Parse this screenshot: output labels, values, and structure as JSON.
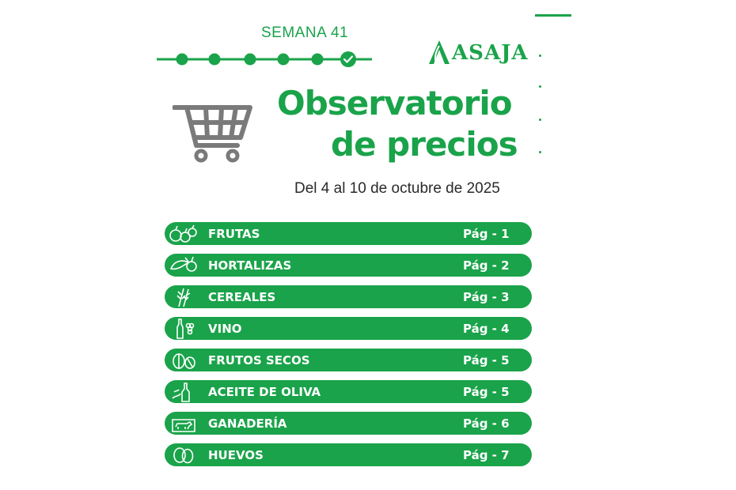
{
  "header": {
    "week_label": "SEMANA 41",
    "brand": "ASAJA",
    "title_line1": "Observatorio",
    "title_line2": "de precios",
    "date_range": "Del 4 al 10 de octubre de 2025"
  },
  "colors": {
    "accent": "#1aa34a",
    "cart": "#7a7a7a",
    "text": "#2a2a2a"
  },
  "timeline": {
    "steps": 6,
    "completed_icon": "check-icon"
  },
  "sections": [
    {
      "label": "FRUTAS",
      "page": "Pág - 1",
      "icon": "fruits-icon"
    },
    {
      "label": "HORTALIZAS",
      "page": "Pág - 2",
      "icon": "vegetables-icon"
    },
    {
      "label": "CEREALES",
      "page": "Pág - 3",
      "icon": "wheat-icon"
    },
    {
      "label": "VINO",
      "page": "Pág - 4",
      "icon": "wine-icon"
    },
    {
      "label": "FRUTOS SECOS",
      "page": "Pág - 5",
      "icon": "nuts-icon"
    },
    {
      "label": "ACEITE DE OLIVA",
      "page": "Pág - 5",
      "icon": "olive-oil-icon"
    },
    {
      "label": "GANADERÍA",
      "page": "Pág - 6",
      "icon": "livestock-icon"
    },
    {
      "label": "HUEVOS",
      "page": "Pág - 7",
      "icon": "eggs-icon"
    }
  ]
}
